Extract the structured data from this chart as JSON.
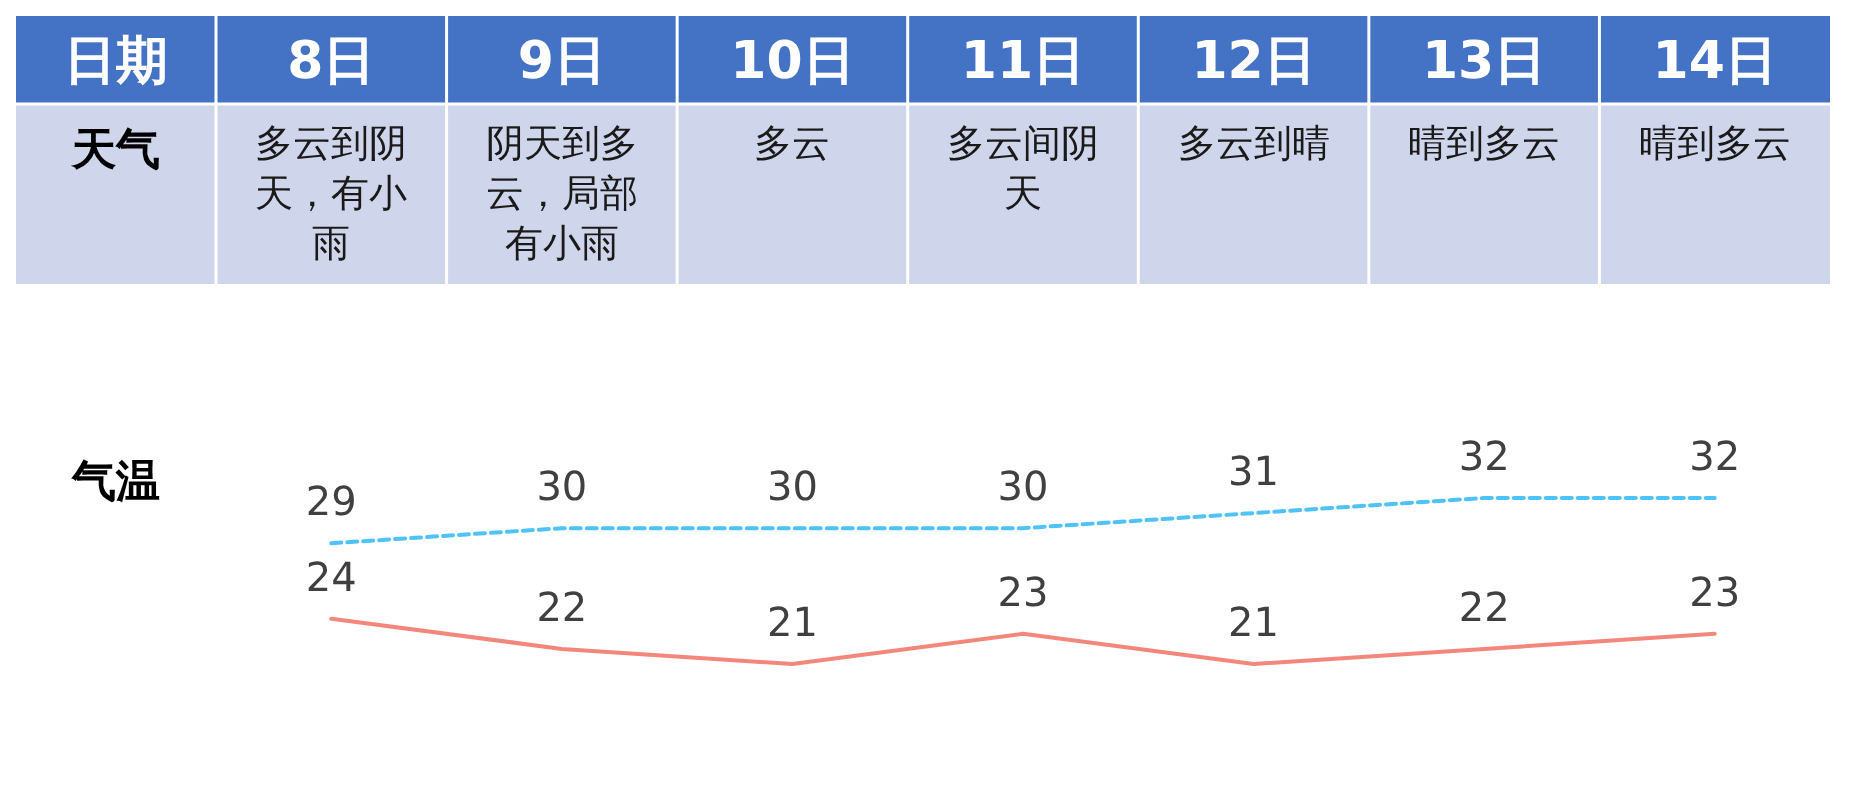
{
  "chart_data": {
    "type": "line",
    "xlabel": "日期",
    "ylabel": "气温",
    "categories": [
      "8日",
      "9日",
      "10日",
      "11日",
      "12日",
      "13日",
      "14日"
    ],
    "tick_labels": "x",
    "data_labels": true,
    "series": [
      {
        "color": "#4fc3f7",
        "line_style": "dashed",
        "values": [
          29,
          30,
          30,
          30,
          31,
          32,
          32
        ]
      },
      {
        "color": "#f4877c",
        "line_style": "solid",
        "values": [
          24,
          22,
          21,
          23,
          21,
          22,
          23
        ]
      }
    ],
    "annotations": [
      "天气",
      "多云到阴天，有小雨",
      "阴天到多云，局部有小雨",
      "多云",
      "多云间阴天",
      "多云到晴",
      "晴到多云",
      "晴到多云"
    ]
  }
}
